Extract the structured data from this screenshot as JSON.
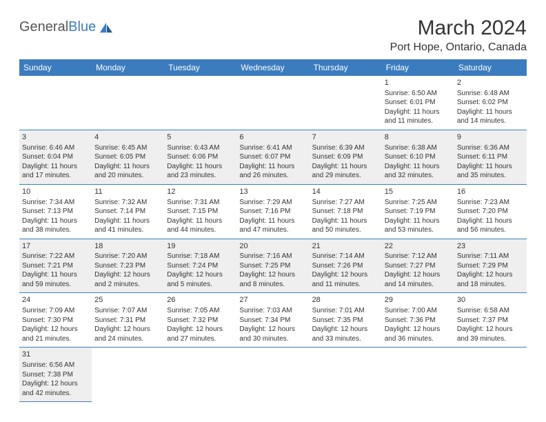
{
  "logo": {
    "text1": "General",
    "text2": "Blue"
  },
  "title": "March 2024",
  "location": "Port Hope, Ontario, Canada",
  "colors": {
    "header_bg": "#3b7cbf",
    "header_text": "#ffffff",
    "border": "#3b7cbf",
    "shaded": "#efefef",
    "body_text": "#333333"
  },
  "weekdays": [
    "Sunday",
    "Monday",
    "Tuesday",
    "Wednesday",
    "Thursday",
    "Friday",
    "Saturday"
  ],
  "first_weekday_index": 5,
  "days": [
    {
      "n": 1,
      "sunrise": "6:50 AM",
      "sunset": "6:01 PM",
      "daylight": "11 hours and 11 minutes."
    },
    {
      "n": 2,
      "sunrise": "6:48 AM",
      "sunset": "6:02 PM",
      "daylight": "11 hours and 14 minutes."
    },
    {
      "n": 3,
      "sunrise": "6:46 AM",
      "sunset": "6:04 PM",
      "daylight": "11 hours and 17 minutes."
    },
    {
      "n": 4,
      "sunrise": "6:45 AM",
      "sunset": "6:05 PM",
      "daylight": "11 hours and 20 minutes."
    },
    {
      "n": 5,
      "sunrise": "6:43 AM",
      "sunset": "6:06 PM",
      "daylight": "11 hours and 23 minutes."
    },
    {
      "n": 6,
      "sunrise": "6:41 AM",
      "sunset": "6:07 PM",
      "daylight": "11 hours and 26 minutes."
    },
    {
      "n": 7,
      "sunrise": "6:39 AM",
      "sunset": "6:09 PM",
      "daylight": "11 hours and 29 minutes."
    },
    {
      "n": 8,
      "sunrise": "6:38 AM",
      "sunset": "6:10 PM",
      "daylight": "11 hours and 32 minutes."
    },
    {
      "n": 9,
      "sunrise": "6:36 AM",
      "sunset": "6:11 PM",
      "daylight": "11 hours and 35 minutes."
    },
    {
      "n": 10,
      "sunrise": "7:34 AM",
      "sunset": "7:13 PM",
      "daylight": "11 hours and 38 minutes."
    },
    {
      "n": 11,
      "sunrise": "7:32 AM",
      "sunset": "7:14 PM",
      "daylight": "11 hours and 41 minutes."
    },
    {
      "n": 12,
      "sunrise": "7:31 AM",
      "sunset": "7:15 PM",
      "daylight": "11 hours and 44 minutes."
    },
    {
      "n": 13,
      "sunrise": "7:29 AM",
      "sunset": "7:16 PM",
      "daylight": "11 hours and 47 minutes."
    },
    {
      "n": 14,
      "sunrise": "7:27 AM",
      "sunset": "7:18 PM",
      "daylight": "11 hours and 50 minutes."
    },
    {
      "n": 15,
      "sunrise": "7:25 AM",
      "sunset": "7:19 PM",
      "daylight": "11 hours and 53 minutes."
    },
    {
      "n": 16,
      "sunrise": "7:23 AM",
      "sunset": "7:20 PM",
      "daylight": "11 hours and 56 minutes."
    },
    {
      "n": 17,
      "sunrise": "7:22 AM",
      "sunset": "7:21 PM",
      "daylight": "11 hours and 59 minutes."
    },
    {
      "n": 18,
      "sunrise": "7:20 AM",
      "sunset": "7:23 PM",
      "daylight": "12 hours and 2 minutes."
    },
    {
      "n": 19,
      "sunrise": "7:18 AM",
      "sunset": "7:24 PM",
      "daylight": "12 hours and 5 minutes."
    },
    {
      "n": 20,
      "sunrise": "7:16 AM",
      "sunset": "7:25 PM",
      "daylight": "12 hours and 8 minutes."
    },
    {
      "n": 21,
      "sunrise": "7:14 AM",
      "sunset": "7:26 PM",
      "daylight": "12 hours and 11 minutes."
    },
    {
      "n": 22,
      "sunrise": "7:12 AM",
      "sunset": "7:27 PM",
      "daylight": "12 hours and 14 minutes."
    },
    {
      "n": 23,
      "sunrise": "7:11 AM",
      "sunset": "7:29 PM",
      "daylight": "12 hours and 18 minutes."
    },
    {
      "n": 24,
      "sunrise": "7:09 AM",
      "sunset": "7:30 PM",
      "daylight": "12 hours and 21 minutes."
    },
    {
      "n": 25,
      "sunrise": "7:07 AM",
      "sunset": "7:31 PM",
      "daylight": "12 hours and 24 minutes."
    },
    {
      "n": 26,
      "sunrise": "7:05 AM",
      "sunset": "7:32 PM",
      "daylight": "12 hours and 27 minutes."
    },
    {
      "n": 27,
      "sunrise": "7:03 AM",
      "sunset": "7:34 PM",
      "daylight": "12 hours and 30 minutes."
    },
    {
      "n": 28,
      "sunrise": "7:01 AM",
      "sunset": "7:35 PM",
      "daylight": "12 hours and 33 minutes."
    },
    {
      "n": 29,
      "sunrise": "7:00 AM",
      "sunset": "7:36 PM",
      "daylight": "12 hours and 36 minutes."
    },
    {
      "n": 30,
      "sunrise": "6:58 AM",
      "sunset": "7:37 PM",
      "daylight": "12 hours and 39 minutes."
    },
    {
      "n": 31,
      "sunrise": "6:56 AM",
      "sunset": "7:38 PM",
      "daylight": "12 hours and 42 minutes."
    }
  ],
  "labels": {
    "sunrise": "Sunrise:",
    "sunset": "Sunset:",
    "daylight": "Daylight:"
  }
}
